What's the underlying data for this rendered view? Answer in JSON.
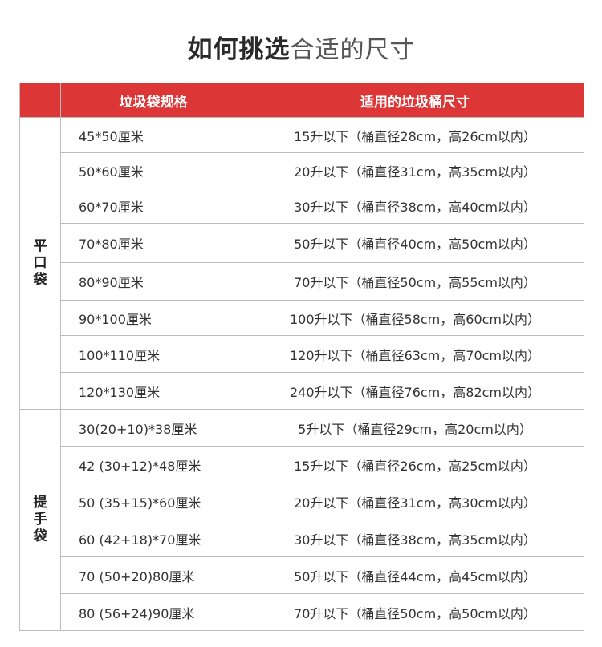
{
  "title": {
    "bold": "如何挑选",
    "light": "合适的尺寸"
  },
  "header": {
    "col1": "",
    "col2": "垃圾袋规格",
    "col3": "适用的垃圾桶尺寸"
  },
  "colors": {
    "header_bg": "#dc3636",
    "border": "#bdbdbd"
  },
  "groups": [
    {
      "label": "平口袋",
      "rows": [
        {
          "size": "45*50厘米",
          "fit": "15升以下（桶直径28cm，高26cm以内）"
        },
        {
          "size": "50*60厘米",
          "fit": "20升以下（桶直径31cm，高35cm以内）"
        },
        {
          "size": "60*70厘米",
          "fit": "30升以下（桶直径38cm，高40cm以内）"
        },
        {
          "size": "70*80厘米",
          "fit": "50升以下（桶直径40cm，高50cm以内）"
        },
        {
          "size": "80*90厘米",
          "fit": "70升以下（桶直径50cm，高55cm以内）"
        },
        {
          "size": "90*100厘米",
          "fit": "100升以下（桶直径58cm，高60cm以内）"
        },
        {
          "size": "100*110厘米",
          "fit": "120升以下（桶直径63cm，高70cm以内）"
        },
        {
          "size": "120*130厘米",
          "fit": "240升以下（桶直径76cm，高82cm以内）"
        }
      ]
    },
    {
      "label": "提手袋",
      "rows": [
        {
          "size": "30(20+10)*38厘米",
          "fit": "5升以下（桶直径29cm，高20cm以内）"
        },
        {
          "size": "42 (30+12)*48厘米",
          "fit": "15升以下（桶直径26cm，高25cm以内）"
        },
        {
          "size": "50 (35+15)*60厘米",
          "fit": "20升以下（桶直径31cm，高30cm以内）"
        },
        {
          "size": "60 (42+18)*70厘米",
          "fit": "30升以下（桶直径38cm，高35cm以内）"
        },
        {
          "size": "70 (50+20)80厘米",
          "fit": "50升以下（桶直径44cm，高45cm以内）"
        },
        {
          "size": "80 (56+24)90厘米",
          "fit": "70升以下（桶直径50cm，高50cm以内）"
        }
      ]
    }
  ]
}
